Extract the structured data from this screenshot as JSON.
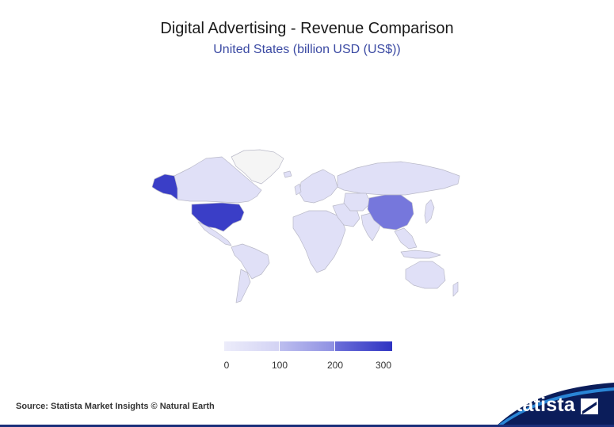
{
  "title": "Digital Advertising - Revenue Comparison",
  "subtitle": "United States (billion USD (US$))",
  "source": "Source: Statista Market Insights © Natural Earth",
  "brand": "statista",
  "legend": {
    "ticks": [
      "0",
      "100",
      "200",
      "300"
    ],
    "colors": [
      "#e3e3f8",
      "#b8b9ee",
      "#7f81df",
      "#3a3ec7"
    ]
  },
  "colors": {
    "default_country": "#e0e0f7",
    "no_data": "#f5f5f5",
    "united_states": "#3a3ec7",
    "china": "#7677dc",
    "border": "#b9b9c8",
    "brand_dark": "#0b1d5a"
  },
  "chart_data": {
    "type": "map",
    "title": "Digital Advertising - Revenue Comparison",
    "subtitle": "United States (billion USD (US$))",
    "scale_range": [
      0,
      320
    ],
    "highlighted": [
      {
        "country": "United States",
        "value": 300
      },
      {
        "country": "China",
        "value": 160
      }
    ]
  }
}
